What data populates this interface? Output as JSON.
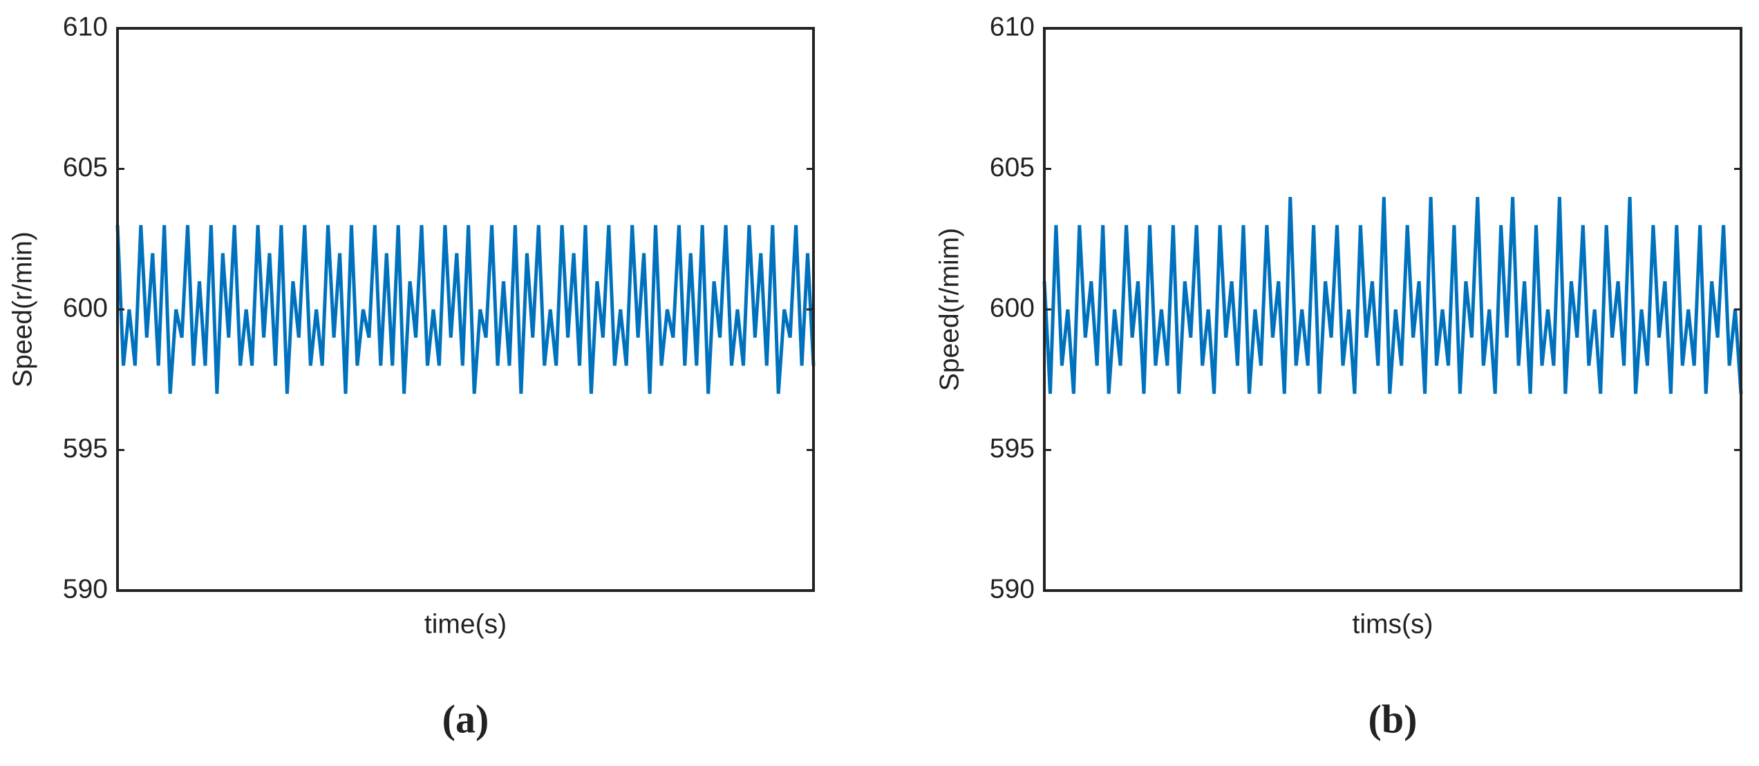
{
  "chart_data": [
    {
      "type": "line",
      "label": "(a)",
      "x_label": "time(s)",
      "y_label": "Speed(r/min)",
      "color": "#0072bd",
      "ylim": [
        590,
        610
      ],
      "yticks": [
        590,
        595,
        600,
        605,
        610
      ],
      "values": [
        603,
        598,
        600,
        598,
        603,
        599,
        602,
        598,
        603,
        597,
        600,
        599,
        603,
        598,
        601,
        598,
        603,
        597,
        602,
        599,
        603,
        598,
        600,
        598,
        603,
        599,
        602,
        598,
        603,
        597,
        601,
        599,
        603,
        598,
        600,
        598,
        603,
        599,
        602,
        597,
        603,
        598,
        600,
        599,
        603,
        598,
        602,
        598,
        603,
        597,
        601,
        599,
        603,
        598,
        600,
        598,
        603,
        599,
        602,
        598,
        603,
        597,
        600,
        599,
        603,
        598,
        601,
        598,
        603,
        597,
        602,
        599,
        603,
        598,
        600,
        598,
        603,
        599,
        602,
        598,
        603,
        597,
        601,
        599,
        603,
        598,
        600,
        598,
        603,
        599,
        602,
        597,
        603,
        598,
        600,
        599,
        603,
        598,
        602,
        598,
        603,
        597,
        601,
        599,
        603,
        598,
        600,
        598,
        603,
        599,
        602,
        598,
        603,
        597,
        600,
        599,
        603,
        598,
        602,
        598
      ]
    },
    {
      "type": "line",
      "label": "(b)",
      "x_label": "tims(s)",
      "y_label": "Speed(r/mim)",
      "color": "#0072bd",
      "ylim": [
        590,
        610
      ],
      "yticks": [
        590,
        595,
        600,
        605,
        610
      ],
      "values": [
        601,
        597,
        603,
        598,
        600,
        597,
        603,
        599,
        601,
        598,
        603,
        597,
        600,
        598,
        603,
        599,
        601,
        597,
        603,
        598,
        600,
        598,
        603,
        597,
        601,
        599,
        603,
        598,
        600,
        597,
        603,
        599,
        601,
        598,
        603,
        597,
        600,
        598,
        603,
        599,
        601,
        597,
        604,
        598,
        600,
        598,
        603,
        597,
        601,
        599,
        603,
        598,
        600,
        597,
        603,
        599,
        601,
        598,
        604,
        597,
        600,
        598,
        603,
        599,
        601,
        597,
        604,
        598,
        600,
        598,
        603,
        597,
        601,
        599,
        604,
        598,
        600,
        597,
        603,
        599,
        604,
        598,
        601,
        597,
        603,
        598,
        600,
        598,
        604,
        597,
        601,
        599,
        603,
        598,
        600,
        597,
        603,
        599,
        601,
        598,
        604,
        597,
        600,
        598,
        603,
        599,
        601,
        597,
        603,
        598,
        600,
        598,
        603,
        597,
        601,
        599,
        603,
        598,
        600,
        597
      ]
    }
  ]
}
